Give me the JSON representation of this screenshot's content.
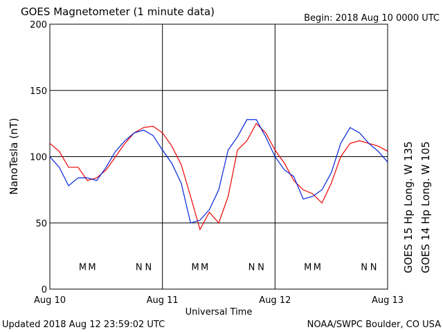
{
  "chart_data": {
    "type": "line",
    "title": "GOES Magnetometer (1 minute data)",
    "subtitle": "Begin:  2018 Aug 10 0000 UTC",
    "ylabel": "NanoTesla (nT)",
    "xlabel": "Universal Time",
    "footer_left": "Updated 2018 Aug 12 23:59:02 UTC",
    "footer_right": "NOAA/SWPC Boulder, CO USA",
    "xlim": [
      0,
      72
    ],
    "ylim": [
      0,
      200
    ],
    "xticks": [
      {
        "value": 0,
        "label": "Aug 10"
      },
      {
        "value": 24,
        "label": "Aug 11"
      },
      {
        "value": 48,
        "label": "Aug 12"
      },
      {
        "value": 72,
        "label": "Aug 13"
      }
    ],
    "yticks": [
      0,
      50,
      100,
      150,
      200
    ],
    "grid": true,
    "x": [
      0,
      2,
      4,
      6,
      8,
      10,
      12,
      14,
      16,
      18,
      20,
      22,
      24,
      26,
      28,
      30,
      32,
      34,
      36,
      38,
      40,
      42,
      44,
      46,
      48,
      50,
      52,
      54,
      56,
      58,
      60,
      62,
      64,
      66,
      68,
      70,
      72
    ],
    "series": [
      {
        "name": "GOES 15 Hp  Long. W 135",
        "color": "#ee0000",
        "values": [
          110,
          104,
          92,
          92,
          82,
          84,
          90,
          100,
          110,
          118,
          122,
          123,
          118,
          108,
          94,
          70,
          45,
          58,
          50,
          70,
          105,
          112,
          125,
          118,
          105,
          95,
          82,
          75,
          72,
          65,
          80,
          100,
          110,
          112,
          110,
          108,
          104
        ]
      },
      {
        "name": "GOES 14 Hp  Long. W 105",
        "color": "#0022dd",
        "values": [
          100,
          92,
          78,
          84,
          84,
          82,
          92,
          104,
          112,
          118,
          120,
          116,
          105,
          95,
          80,
          50,
          52,
          60,
          75,
          105,
          115,
          128,
          128,
          115,
          100,
          90,
          85,
          68,
          70,
          75,
          88,
          110,
          122,
          118,
          110,
          104,
          96
        ]
      }
    ],
    "annotations": [
      {
        "text": "M",
        "x": 7,
        "y": 17,
        "color": "#0022dd"
      },
      {
        "text": "M",
        "x": 9,
        "y": 17,
        "color": "#ee0000"
      },
      {
        "text": "N",
        "x": 19,
        "y": 17,
        "color": "#0022dd"
      },
      {
        "text": "N",
        "x": 21,
        "y": 17,
        "color": "#ee0000"
      },
      {
        "text": "M",
        "x": 31,
        "y": 17,
        "color": "#0022dd"
      },
      {
        "text": "M",
        "x": 33,
        "y": 17,
        "color": "#ee0000"
      },
      {
        "text": "N",
        "x": 43,
        "y": 17,
        "color": "#0022dd"
      },
      {
        "text": "N",
        "x": 45,
        "y": 17,
        "color": "#ee0000"
      },
      {
        "text": "M",
        "x": 55,
        "y": 17,
        "color": "#0022dd"
      },
      {
        "text": "M",
        "x": 57,
        "y": 17,
        "color": "#ee0000"
      },
      {
        "text": "N",
        "x": 67,
        "y": 17,
        "color": "#0022dd"
      },
      {
        "text": "N",
        "x": 69,
        "y": 17,
        "color": "#ee0000"
      }
    ]
  }
}
